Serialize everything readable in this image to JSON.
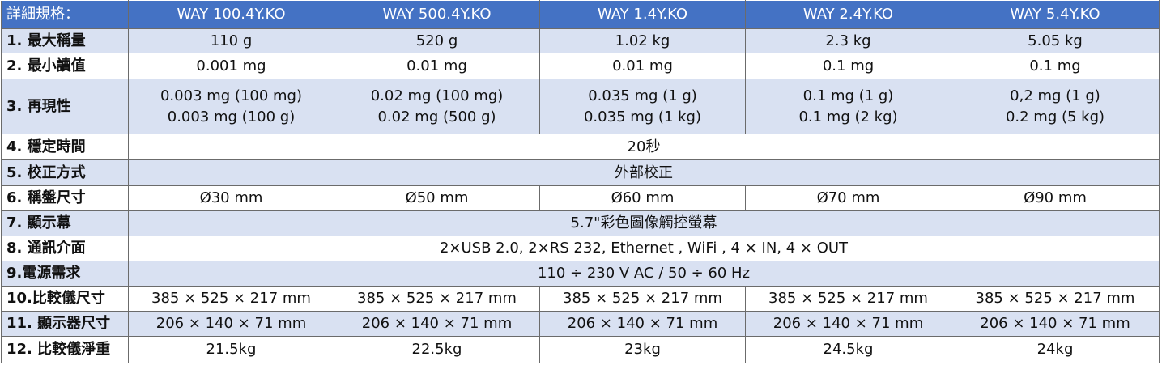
{
  "table": {
    "header": [
      "詳細規格：",
      "WAY 100.4Y.KO",
      "WAY 500.4Y.KO",
      "WAY 1.4Y.KO",
      "WAY 2.4Y.KO",
      "WAY 5.4Y.KO"
    ],
    "rows": [
      [
        "1. 最大稱量",
        "110 g",
        "520 g",
        "1.02 kg",
        "2.3 kg",
        "5.05 kg"
      ],
      [
        "2. 最小讀值",
        "0.001 mg",
        "0.01 mg",
        "0.01 mg",
        "0.1 mg",
        "0.1 mg"
      ],
      [
        "3. 再現性",
        [
          "0.003 mg (100 mg)",
          "0.003 mg (100 g)"
        ],
        [
          "0.02 mg (100 mg)",
          "0.02 mg (500 g)"
        ],
        [
          "0.035 mg (1 g)",
          "0.035 mg (1 kg)"
        ],
        [
          "0.1 mg (1 g)",
          "0.1 mg (2 kg)"
        ],
        [
          "0,2 mg (1 g)",
          "0.2 mg (5 kg)"
        ]
      ],
      [
        "4. 穩定時間",
        "20秒"
      ],
      [
        "5. 校正方式",
        "外部校正"
      ],
      [
        "6. 稱盤尺寸",
        "Ø30 mm",
        "Ø50 mm",
        "Ø60 mm",
        "Ø70 mm",
        "Ø90 mm"
      ],
      [
        "7. 顯示幕",
        "5.7\"彩色圖像觸控螢幕"
      ],
      [
        "8. 通訊介面",
        "2×USB 2.0, 2×RS 232, Ethernet , WiFi , 4 × IN, 4 × OUT"
      ],
      [
        "9.電源需求",
        "110 ÷ 230 V AC / 50 ÷ 60 Hz"
      ],
      [
        "10.比較儀尺寸",
        "385 × 525 × 217 mm",
        "385 × 525 × 217 mm",
        "385 × 525 × 217 mm",
        "385 × 525 × 217 mm",
        "385 × 525 × 217 mm"
      ],
      [
        "11. 顯示器尺寸",
        "206 × 140 × 71 mm",
        "206 × 140 × 71 mm",
        "206 × 140 × 71 mm",
        "206 × 140 × 71 mm",
        "206 × 140 × 71 mm"
      ],
      [
        "12. 比較儀淨重",
        "21.5kg",
        "22.5kg",
        "23kg",
        "24.5kg",
        "24kg"
      ]
    ]
  }
}
